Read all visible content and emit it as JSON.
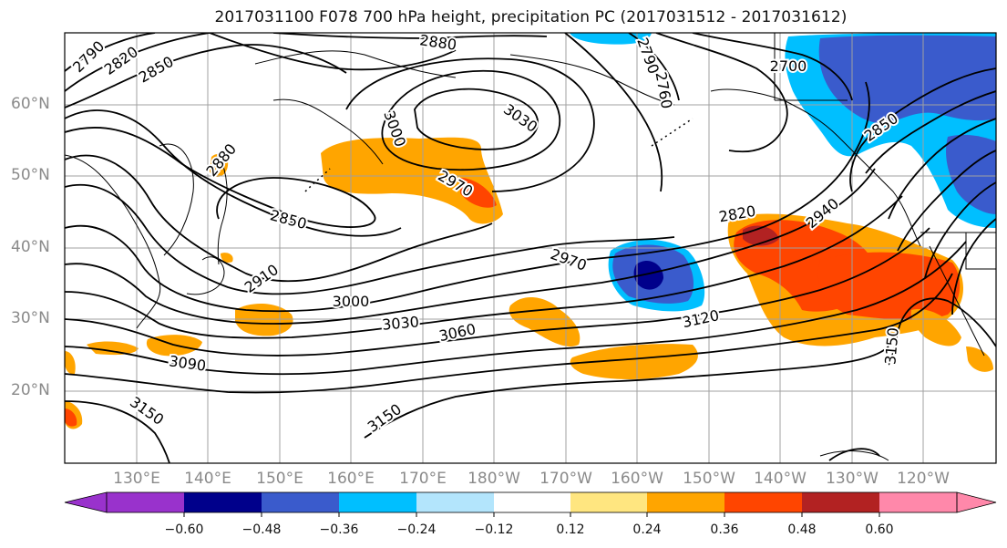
{
  "title": "2017031100 F078 700 hPa height, precipitation PC (2017031512 - 2017031612)",
  "lat_labels": [
    "60°N",
    "50°N",
    "40°N",
    "30°N",
    "20°N"
  ],
  "lon_labels": [
    "130°E",
    "140°E",
    "150°E",
    "160°E",
    "170°E",
    "180°W",
    "170°W",
    "160°W",
    "150°W",
    "140°W",
    "130°W",
    "120°W"
  ],
  "contour_labels": [
    "2790",
    "2820",
    "2850",
    "2880",
    "2790",
    "2760",
    "2700",
    "3030",
    "3000",
    "2970",
    "2850",
    "2880",
    "2850",
    "2820",
    "2940",
    "2910",
    "2970",
    "3000",
    "3030",
    "3060",
    "3090",
    "3120",
    "3150",
    "3150",
    "3150"
  ],
  "colorbar": {
    "colors": [
      "#9932cc",
      "#00008b",
      "#3a5bcc",
      "#00bfff",
      "#b3e5fc",
      "#ffffff",
      "#ffffff",
      "#ffe680",
      "#ffa500",
      "#ff4500",
      "#b22222",
      "#ff88aa"
    ],
    "ticks": [
      "−0.60",
      "−0.48",
      "−0.36",
      "−0.24",
      "−0.12",
      "0.12",
      "0.24",
      "0.36",
      "0.48",
      "0.60"
    ]
  }
}
